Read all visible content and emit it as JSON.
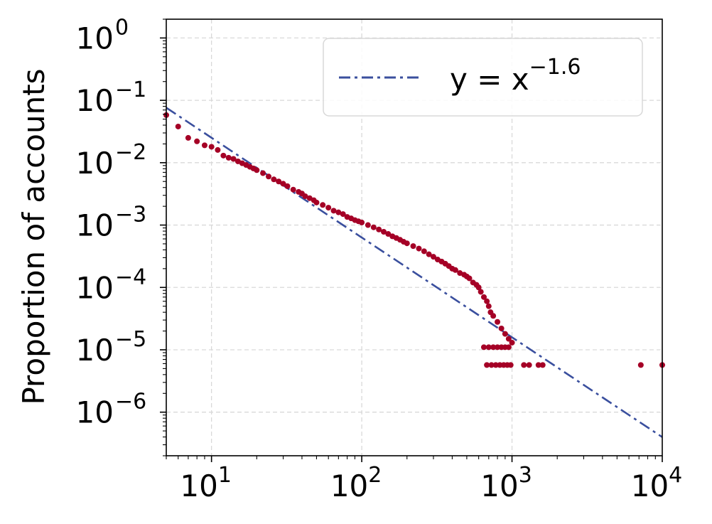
{
  "chart_data": {
    "type": "scatter",
    "title": "",
    "xlabel": "",
    "ylabel": "Proportion of accounts",
    "x_scale": "log",
    "y_scale": "log",
    "xlim": [
      5,
      10000
    ],
    "ylim": [
      2e-07,
      2
    ],
    "grid": true,
    "legend": {
      "placement": "top-right",
      "entries": [
        "y = x^-1.6"
      ]
    },
    "x_ticks": [
      {
        "value": 10,
        "base": "10",
        "exp": "1"
      },
      {
        "value": 100,
        "base": "10",
        "exp": "2"
      },
      {
        "value": 1000,
        "base": "10",
        "exp": "3"
      },
      {
        "value": 10000,
        "base": "10",
        "exp": "4"
      }
    ],
    "y_ticks": [
      {
        "value": 1,
        "base": "10",
        "exp": "0"
      },
      {
        "value": 0.1,
        "base": "10",
        "exp": "−1"
      },
      {
        "value": 0.01,
        "base": "10",
        "exp": "−2"
      },
      {
        "value": 0.001,
        "base": "10",
        "exp": "−3"
      },
      {
        "value": 0.0001,
        "base": "10",
        "exp": "−4"
      },
      {
        "value": 1e-05,
        "base": "10",
        "exp": "−5"
      },
      {
        "value": 1e-06,
        "base": "10",
        "exp": "−6"
      }
    ],
    "series": [
      {
        "type": "scatter",
        "color": "#a50026",
        "points": [
          [
            5,
            0.058
          ],
          [
            6,
            0.038
          ],
          [
            7,
            0.025
          ],
          [
            8,
            0.022
          ],
          [
            9,
            0.019
          ],
          [
            10,
            0.018
          ],
          [
            11,
            0.016
          ],
          [
            12,
            0.013
          ],
          [
            13,
            0.012
          ],
          [
            14,
            0.0115
          ],
          [
            15,
            0.0105
          ],
          [
            16,
            0.0098
          ],
          [
            17,
            0.0092
          ],
          [
            18,
            0.0086
          ],
          [
            19,
            0.0081
          ],
          [
            20,
            0.0076
          ],
          [
            22,
            0.0068
          ],
          [
            24,
            0.006
          ],
          [
            26,
            0.0054
          ],
          [
            28,
            0.005
          ],
          [
            30,
            0.0046
          ],
          [
            32,
            0.0042
          ],
          [
            35,
            0.0037
          ],
          [
            38,
            0.0034
          ],
          [
            40,
            0.0032
          ],
          [
            42,
            0.0029
          ],
          [
            45,
            0.0027
          ],
          [
            48,
            0.0025
          ],
          [
            50,
            0.0023
          ],
          [
            55,
            0.0021
          ],
          [
            60,
            0.0019
          ],
          [
            65,
            0.0017
          ],
          [
            70,
            0.0016
          ],
          [
            75,
            0.0015
          ],
          [
            80,
            0.00135
          ],
          [
            85,
            0.00128
          ],
          [
            90,
            0.0012
          ],
          [
            95,
            0.00115
          ],
          [
            100,
            0.0011
          ],
          [
            110,
            0.001
          ],
          [
            120,
            0.00092
          ],
          [
            130,
            0.00085
          ],
          [
            140,
            0.00078
          ],
          [
            150,
            0.00072
          ],
          [
            160,
            0.00066
          ],
          [
            170,
            0.00062
          ],
          [
            180,
            0.00058
          ],
          [
            190,
            0.00054
          ],
          [
            200,
            0.00051
          ],
          [
            220,
            0.00046
          ],
          [
            240,
            0.00042
          ],
          [
            260,
            0.00038
          ],
          [
            280,
            0.00034
          ],
          [
            300,
            0.00031
          ],
          [
            320,
            0.00028
          ],
          [
            340,
            0.00026
          ],
          [
            360,
            0.00024
          ],
          [
            380,
            0.00022
          ],
          [
            400,
            0.0002
          ],
          [
            420,
            0.00019
          ],
          [
            450,
            0.00017
          ],
          [
            480,
            0.00016
          ],
          [
            500,
            0.00015
          ],
          [
            520,
            0.00014
          ],
          [
            550,
            0.00012
          ],
          [
            580,
            0.00011
          ],
          [
            600,
            0.0001
          ],
          [
            620,
            8.5e-05
          ],
          [
            650,
            7e-05
          ],
          [
            680,
            6e-05
          ],
          [
            700,
            5e-05
          ],
          [
            720,
            4e-05
          ],
          [
            750,
            3.5e-05
          ],
          [
            800,
            2.8e-05
          ],
          [
            850,
            2.2e-05
          ],
          [
            900,
            1.8e-05
          ],
          [
            950,
            1.5e-05
          ],
          [
            1000,
            1.3e-05
          ],
          [
            650,
            1.1e-05
          ],
          [
            700,
            1.1e-05
          ],
          [
            750,
            1.1e-05
          ],
          [
            800,
            1.1e-05
          ],
          [
            850,
            1.1e-05
          ],
          [
            900,
            1.1e-05
          ],
          [
            950,
            1.1e-05
          ],
          [
            680,
            5.7e-06
          ],
          [
            730,
            5.7e-06
          ],
          [
            780,
            5.7e-06
          ],
          [
            830,
            5.7e-06
          ],
          [
            880,
            5.7e-06
          ],
          [
            930,
            5.7e-06
          ],
          [
            980,
            5.7e-06
          ],
          [
            1200,
            5.7e-06
          ],
          [
            1300,
            5.7e-06
          ],
          [
            1500,
            5.7e-06
          ],
          [
            1600,
            5.7e-06
          ],
          [
            7200,
            5.7e-06
          ],
          [
            10000,
            5.7e-06
          ]
        ]
      },
      {
        "type": "line",
        "name": "y = x^-1.6",
        "color": "#3a4f9e",
        "style": "dash-dot",
        "equation": "y = x^-1.6",
        "exponent": -1.6,
        "x_range": [
          5,
          10000
        ]
      }
    ]
  },
  "legend": {
    "line_label_base": "y = x",
    "line_label_exp": "−1.6"
  },
  "axes": {
    "ylabel": "Proportion of accounts"
  },
  "colors": {
    "scatter": "#a50026",
    "fit_line": "#3a4f9e",
    "grid": "#d9d9d9"
  }
}
